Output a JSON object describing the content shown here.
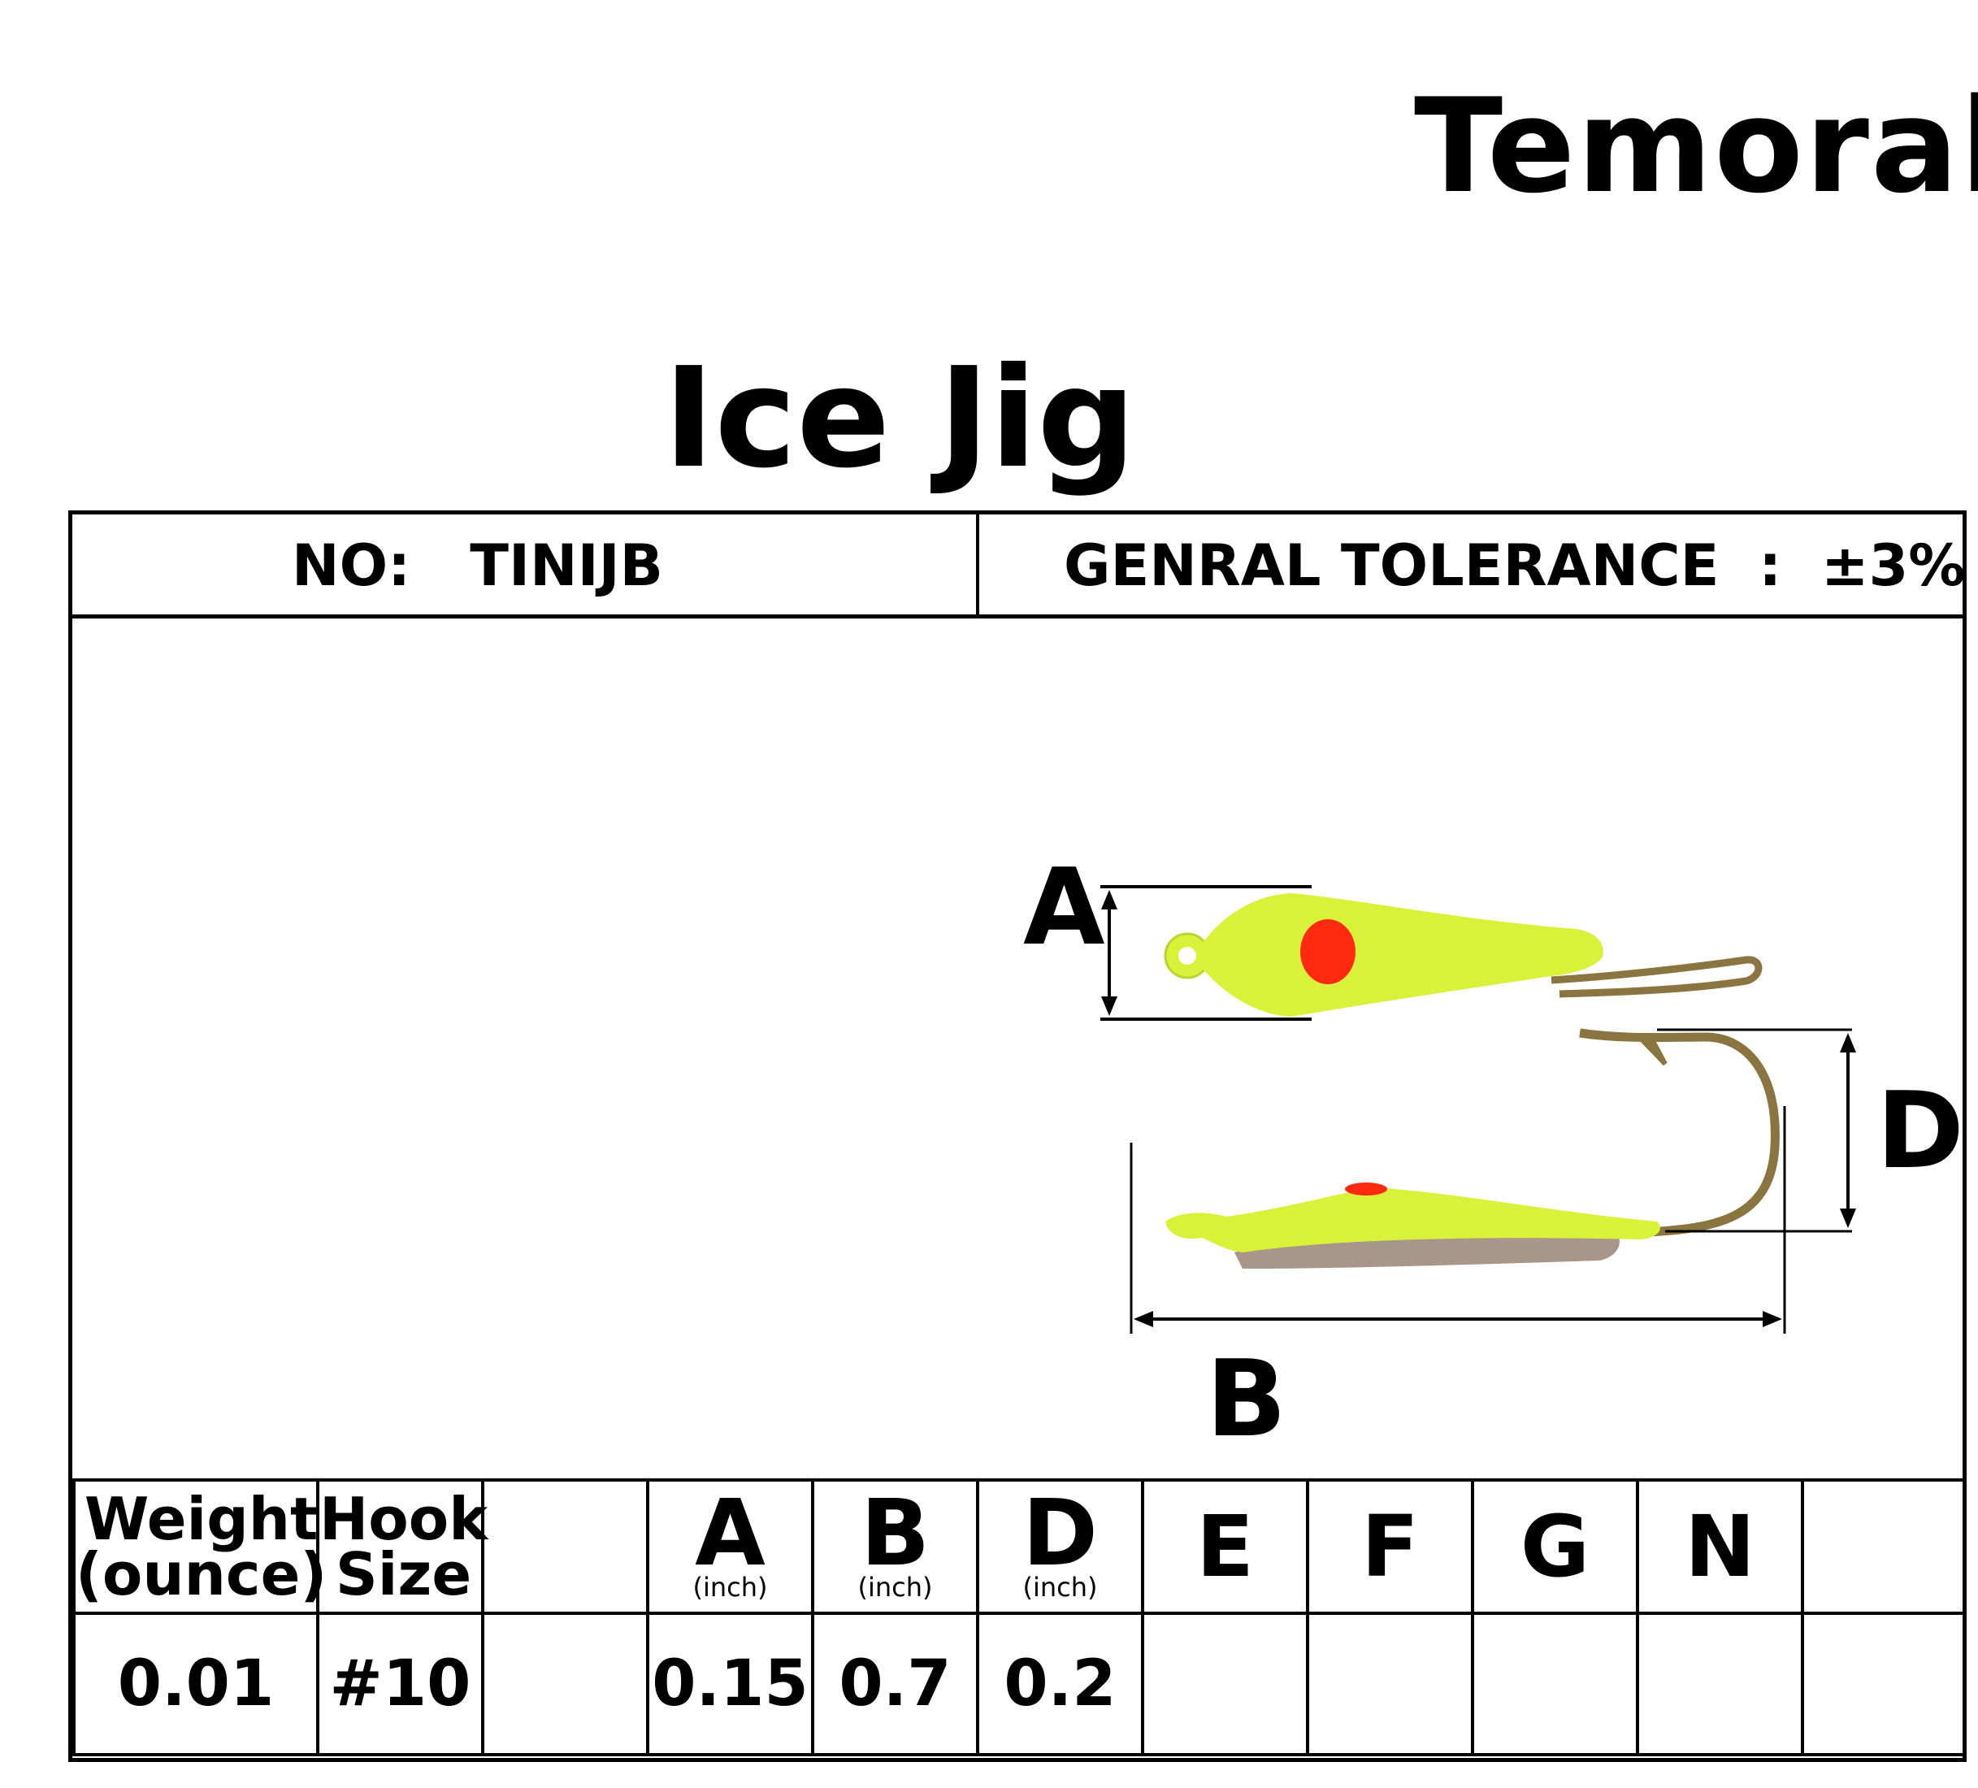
{
  "brand": "Temorah",
  "title": "Ice Jig",
  "header": {
    "no_label": "NO:",
    "no_value": "TINIJB",
    "tolerance_label": "GENRAL TOLERANCE",
    "tolerance_sep": ":",
    "tolerance_value": "±3%"
  },
  "drawing": {
    "labels": {
      "a": "A",
      "b": "B",
      "d": "D"
    },
    "colors": {
      "body": "#d8f23a",
      "eye": "#ff2a10",
      "hook": "#8a7540",
      "underside": "#a9968a"
    }
  },
  "specs": {
    "headers": {
      "weight_line1": "Weight",
      "weight_line2": "(ounce)",
      "hook_line1": "Hook",
      "hook_line2": "Size",
      "blank": "",
      "a": "A",
      "a_unit": "(inch)",
      "b": "B",
      "b_unit": "(inch)",
      "d": "D",
      "d_unit": "(inch)",
      "e": "E",
      "f": "F",
      "g": "G",
      "n": "N",
      "last": ""
    },
    "values": {
      "weight": "0.01",
      "hook": "#10",
      "blank": "",
      "a": "0.15",
      "b": "0.7",
      "d": "0.2",
      "e": "",
      "f": "",
      "g": "",
      "n": "",
      "last": ""
    }
  }
}
